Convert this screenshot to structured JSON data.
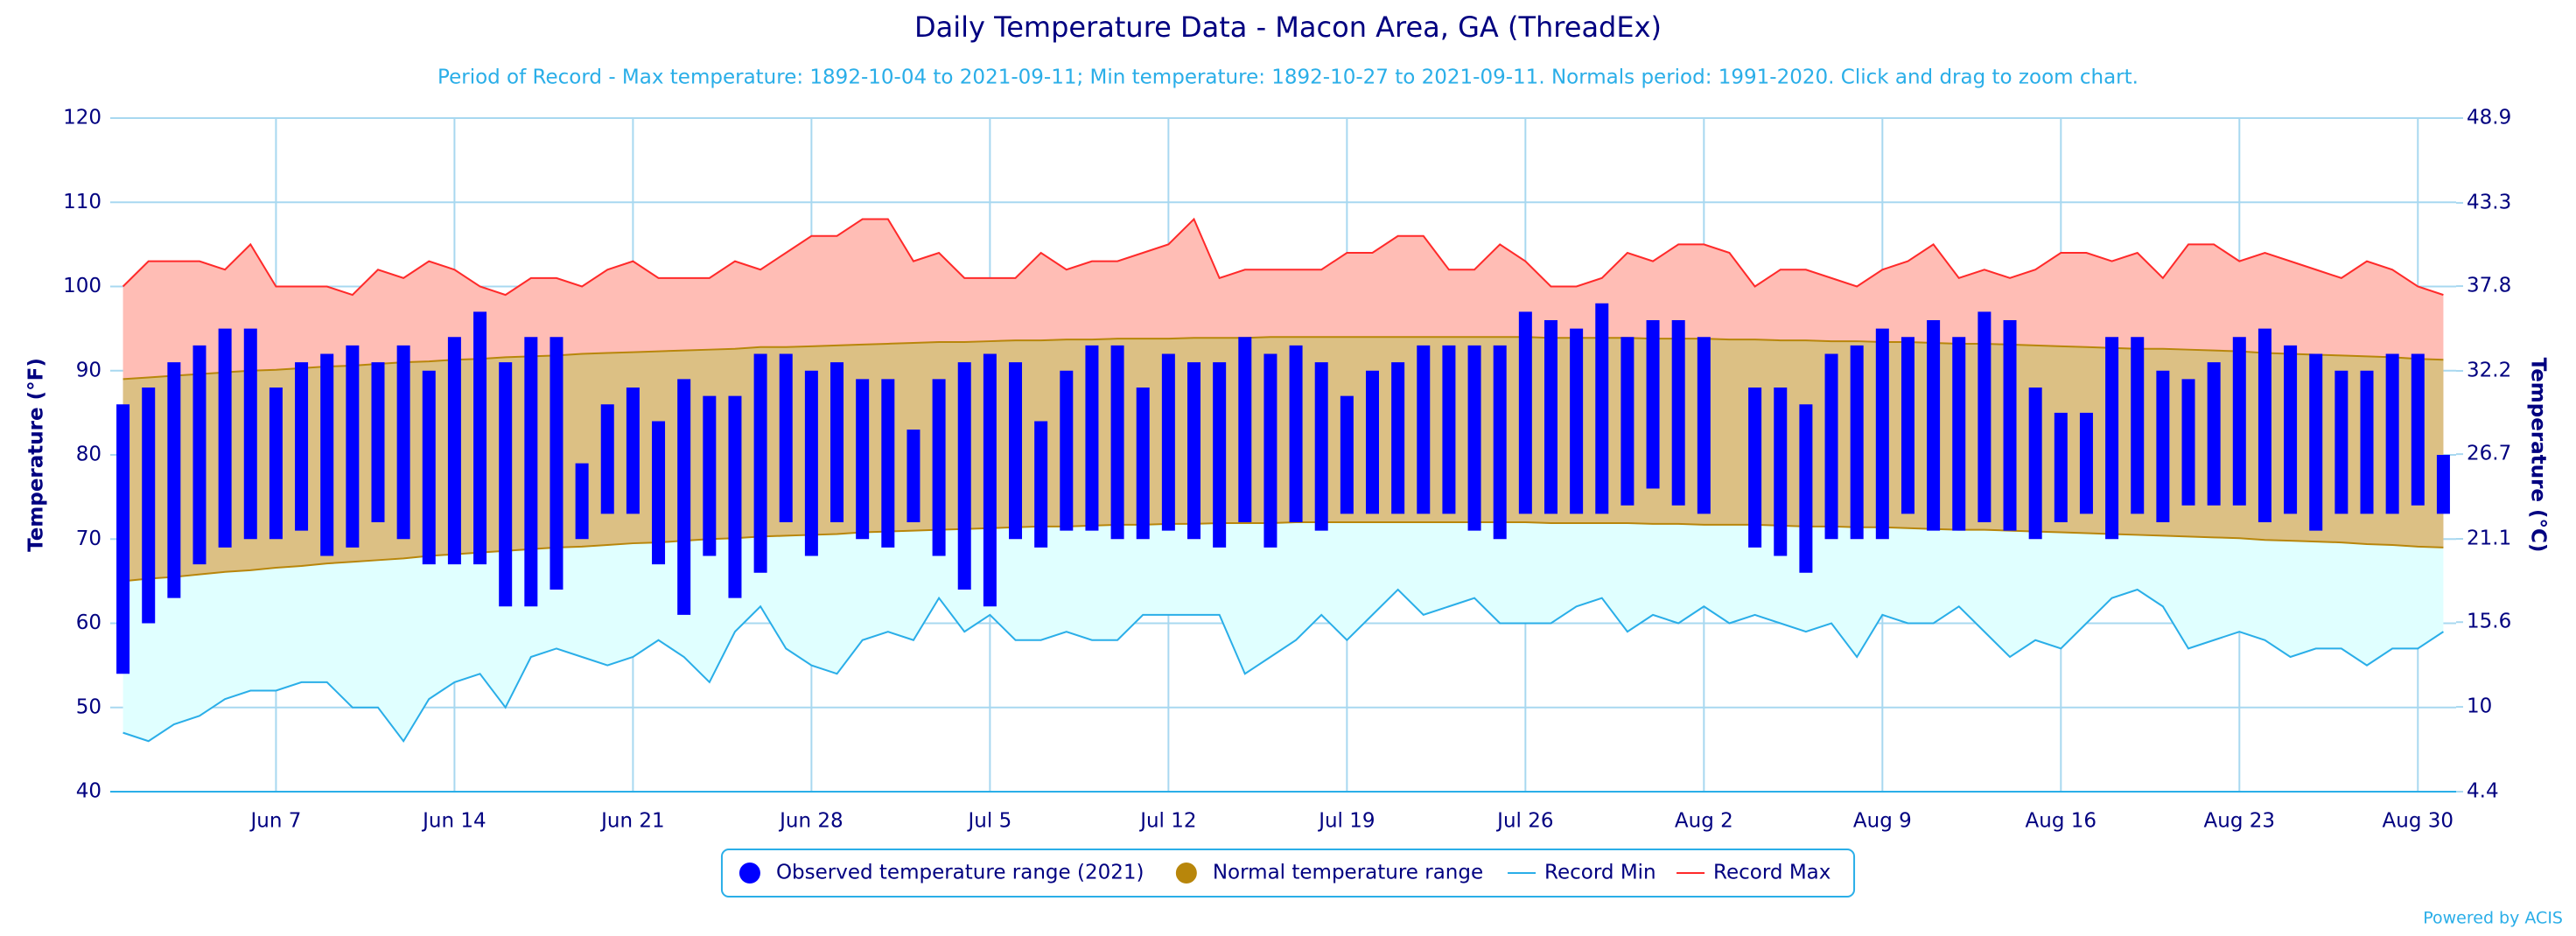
{
  "chart_data": {
    "type": "bar",
    "title": "Daily Temperature Data - Macon Area, GA (ThreadEx)",
    "subtitle": "Period of Record - Max temperature: 1892-10-04 to 2021-09-11; Min temperature: 1892-10-27 to 2021-09-11. Normals period: 1991-2020. Click and drag to zoom chart.",
    "y_label": "Temperature (°F)",
    "y2_label": "Temperature (°C)",
    "credit": "Powered by ACIS",
    "legend": "bottom",
    "grid": true,
    "categories": [
      null,
      null,
      null,
      null,
      null,
      null,
      "Jun 7",
      null,
      null,
      null,
      null,
      null,
      null,
      "Jun 14",
      null,
      null,
      null,
      null,
      null,
      null,
      "Jun 21",
      null,
      null,
      null,
      null,
      null,
      null,
      "Jun 28",
      null,
      null,
      null,
      null,
      null,
      null,
      "Jul 5",
      null,
      null,
      null,
      null,
      null,
      null,
      "Jul 12",
      null,
      null,
      null,
      null,
      null,
      null,
      "Jul 19",
      null,
      null,
      null,
      null,
      null,
      null,
      "Jul 26",
      null,
      null,
      null,
      null,
      null,
      null,
      "Aug 2",
      null,
      null,
      null,
      null,
      null,
      null,
      "Aug 9",
      null,
      null,
      null,
      null,
      null,
      null,
      "Aug 16",
      null,
      null,
      null,
      null,
      null,
      null,
      "Aug 23",
      null,
      null,
      null,
      null,
      null,
      null,
      "Aug 30",
      null
    ],
    "ylim": [
      40,
      120
    ],
    "yticks": [
      40,
      50,
      60,
      70,
      80,
      90,
      100,
      110,
      120
    ],
    "y2lim": [
      4.4,
      48.9
    ],
    "y2ticks": [
      4.4,
      10,
      15.6,
      21.1,
      26.7,
      32.2,
      37.8,
      43.3,
      48.9
    ],
    "series": [
      {
        "name": "Record Max",
        "type": "area",
        "color": "#ff2a2a",
        "fill": "#ffbdb5",
        "values": [
          100,
          103,
          103,
          103,
          102,
          105,
          100,
          100,
          100,
          99,
          102,
          101,
          103,
          102,
          100,
          99,
          101,
          101,
          100,
          102,
          103,
          101,
          101,
          101,
          103,
          102,
          104,
          106,
          106,
          108,
          108,
          103,
          104,
          101,
          101,
          101,
          104,
          102,
          103,
          103,
          104,
          105,
          108,
          101,
          102,
          102,
          102,
          102,
          104,
          104,
          106,
          106,
          102,
          102,
          105,
          103,
          100,
          100,
          101,
          104,
          103,
          105,
          105,
          104,
          100,
          102,
          102,
          101,
          100,
          102,
          103,
          105,
          101,
          102,
          101,
          102,
          104,
          104,
          103,
          104,
          101,
          105,
          105,
          103,
          104,
          103,
          102,
          101,
          103,
          102,
          100,
          99
        ]
      },
      {
        "name": "Record Min",
        "type": "area",
        "color": "#2aaee8",
        "fill": "#e0ffff",
        "values": [
          47,
          46,
          48,
          49,
          51,
          52,
          52,
          53,
          53,
          50,
          50,
          46,
          51,
          53,
          54,
          50,
          56,
          57,
          56,
          55,
          56,
          58,
          56,
          53,
          59,
          62,
          57,
          55,
          54,
          58,
          59,
          58,
          63,
          59,
          61,
          58,
          58,
          59,
          58,
          58,
          61,
          61,
          61,
          61,
          54,
          56,
          58,
          61,
          58,
          61,
          64,
          61,
          62,
          63,
          60,
          60,
          60,
          62,
          63,
          59,
          61,
          60,
          62,
          60,
          61,
          60,
          59,
          60,
          56,
          61,
          60,
          60,
          62,
          59,
          56,
          58,
          57,
          60,
          63,
          64,
          62,
          57,
          58,
          59,
          58,
          56,
          57,
          57,
          55,
          57,
          57,
          59
        ]
      },
      {
        "name": "Normal temperature range",
        "type": "arearange",
        "color": "#b8860b",
        "fill": "#dcc084",
        "values": [
          [
            65.0,
            89.0
          ],
          [
            65.3,
            89.2
          ],
          [
            65.5,
            89.4
          ],
          [
            65.8,
            89.6
          ],
          [
            66.1,
            89.8
          ],
          [
            66.3,
            90.0
          ],
          [
            66.6,
            90.1
          ],
          [
            66.8,
            90.3
          ],
          [
            67.1,
            90.5
          ],
          [
            67.3,
            90.6
          ],
          [
            67.5,
            90.8
          ],
          [
            67.7,
            91.0
          ],
          [
            68.0,
            91.1
          ],
          [
            68.2,
            91.3
          ],
          [
            68.4,
            91.4
          ],
          [
            68.6,
            91.6
          ],
          [
            68.8,
            91.7
          ],
          [
            69.0,
            91.8
          ],
          [
            69.1,
            92.0
          ],
          [
            69.3,
            92.1
          ],
          [
            69.5,
            92.2
          ],
          [
            69.6,
            92.3
          ],
          [
            69.8,
            92.4
          ],
          [
            70.0,
            92.5
          ],
          [
            70.1,
            92.6
          ],
          [
            70.3,
            92.8
          ],
          [
            70.4,
            92.8
          ],
          [
            70.5,
            92.9
          ],
          [
            70.6,
            93.0
          ],
          [
            70.8,
            93.1
          ],
          [
            70.9,
            93.2
          ],
          [
            71.0,
            93.3
          ],
          [
            71.1,
            93.4
          ],
          [
            71.2,
            93.4
          ],
          [
            71.3,
            93.5
          ],
          [
            71.4,
            93.6
          ],
          [
            71.5,
            93.6
          ],
          [
            71.5,
            93.7
          ],
          [
            71.6,
            93.7
          ],
          [
            71.7,
            93.8
          ],
          [
            71.7,
            93.8
          ],
          [
            71.8,
            93.8
          ],
          [
            71.8,
            93.9
          ],
          [
            71.9,
            93.9
          ],
          [
            71.9,
            93.9
          ],
          [
            71.9,
            94.0
          ],
          [
            72.0,
            94.0
          ],
          [
            72.0,
            94.0
          ],
          [
            72.0,
            94.0
          ],
          [
            72.0,
            94.0
          ],
          [
            72.0,
            94.0
          ],
          [
            72.0,
            94.0
          ],
          [
            72.0,
            94.0
          ],
          [
            72.0,
            94.0
          ],
          [
            72.0,
            94.0
          ],
          [
            72.0,
            94.0
          ],
          [
            71.9,
            93.9
          ],
          [
            71.9,
            93.9
          ],
          [
            71.9,
            93.9
          ],
          [
            71.9,
            93.9
          ],
          [
            71.8,
            93.8
          ],
          [
            71.8,
            93.8
          ],
          [
            71.7,
            93.8
          ],
          [
            71.7,
            93.7
          ],
          [
            71.7,
            93.7
          ],
          [
            71.6,
            93.6
          ],
          [
            71.5,
            93.6
          ],
          [
            71.5,
            93.5
          ],
          [
            71.4,
            93.5
          ],
          [
            71.4,
            93.4
          ],
          [
            71.3,
            93.4
          ],
          [
            71.2,
            93.3
          ],
          [
            71.1,
            93.2
          ],
          [
            71.1,
            93.2
          ],
          [
            71.0,
            93.1
          ],
          [
            70.9,
            93.0
          ],
          [
            70.8,
            92.9
          ],
          [
            70.7,
            92.8
          ],
          [
            70.6,
            92.7
          ],
          [
            70.5,
            92.6
          ],
          [
            70.4,
            92.6
          ],
          [
            70.3,
            92.5
          ],
          [
            70.2,
            92.4
          ],
          [
            70.1,
            92.3
          ],
          [
            69.9,
            92.1
          ],
          [
            69.8,
            92.0
          ],
          [
            69.7,
            91.9
          ],
          [
            69.6,
            91.8
          ],
          [
            69.4,
            91.7
          ],
          [
            69.3,
            91.6
          ],
          [
            69.1,
            91.4
          ],
          [
            69.0,
            91.3
          ]
        ]
      },
      {
        "name": "Observed temperature range (2021)",
        "type": "columnrange",
        "color": "#0000ff",
        "values": [
          [
            54,
            86
          ],
          [
            60,
            88
          ],
          [
            63,
            91
          ],
          [
            67,
            93
          ],
          [
            69,
            95
          ],
          [
            70,
            95
          ],
          [
            70,
            88
          ],
          [
            71,
            91
          ],
          [
            68,
            92
          ],
          [
            69,
            93
          ],
          [
            72,
            91
          ],
          [
            70,
            93
          ],
          [
            67,
            90
          ],
          [
            67,
            94
          ],
          [
            67,
            97
          ],
          [
            62,
            91
          ],
          [
            62,
            94
          ],
          [
            64,
            94
          ],
          [
            70,
            79
          ],
          [
            73,
            86
          ],
          [
            73,
            88
          ],
          [
            67,
            84
          ],
          [
            61,
            89
          ],
          [
            68,
            87
          ],
          [
            63,
            87
          ],
          [
            66,
            92
          ],
          [
            72,
            92
          ],
          [
            68,
            90
          ],
          [
            72,
            91
          ],
          [
            70,
            89
          ],
          [
            69,
            89
          ],
          [
            72,
            83
          ],
          [
            68,
            89
          ],
          [
            64,
            91
          ],
          [
            62,
            92
          ],
          [
            70,
            91
          ],
          [
            69,
            84
          ],
          [
            71,
            90
          ],
          [
            71,
            93
          ],
          [
            70,
            93
          ],
          [
            70,
            88
          ],
          [
            71,
            92
          ],
          [
            70,
            91
          ],
          [
            69,
            91
          ],
          [
            72,
            94
          ],
          [
            69,
            92
          ],
          [
            72,
            93
          ],
          [
            71,
            91
          ],
          [
            73,
            87
          ],
          [
            73,
            90
          ],
          [
            73,
            91
          ],
          [
            73,
            93
          ],
          [
            73,
            93
          ],
          [
            71,
            93
          ],
          [
            70,
            93
          ],
          [
            73,
            97
          ],
          [
            73,
            96
          ],
          [
            73,
            95
          ],
          [
            73,
            98
          ],
          [
            74,
            94
          ],
          [
            76,
            96
          ],
          [
            74,
            96
          ],
          [
            73,
            94
          ],
          null,
          [
            69,
            88
          ],
          [
            68,
            88
          ],
          [
            66,
            86
          ],
          [
            70,
            92
          ],
          [
            70,
            93
          ],
          [
            70,
            95
          ],
          [
            73,
            94
          ],
          [
            71,
            96
          ],
          [
            71,
            94
          ],
          [
            72,
            97
          ],
          [
            71,
            96
          ],
          [
            70,
            88
          ],
          [
            72,
            85
          ],
          [
            73,
            85
          ],
          [
            70,
            94
          ],
          [
            73,
            94
          ],
          [
            72,
            90
          ],
          [
            74,
            89
          ],
          [
            74,
            91
          ],
          [
            74,
            94
          ],
          [
            72,
            95
          ],
          [
            73,
            93
          ],
          [
            71,
            92
          ],
          [
            73,
            90
          ],
          [
            73,
            90
          ],
          [
            73,
            92
          ],
          [
            74,
            92
          ],
          [
            73,
            80
          ]
        ]
      }
    ]
  }
}
